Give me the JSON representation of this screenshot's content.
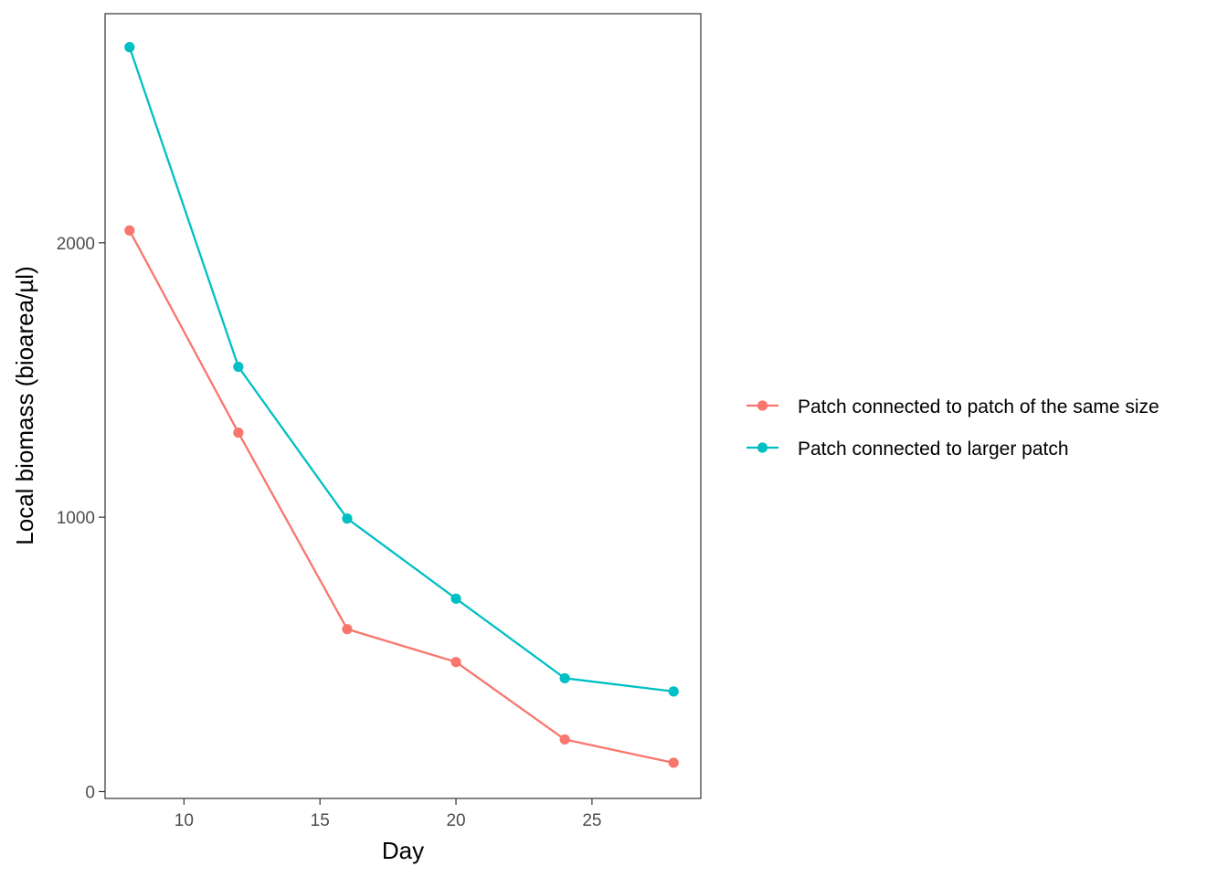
{
  "chart_data": {
    "type": "line",
    "title": "",
    "xlabel": "Day",
    "ylabel": "Local biomass (bioarea/µl)",
    "x": [
      8,
      12,
      16,
      20,
      24,
      28
    ],
    "xlim": [
      7.1,
      29.0
    ],
    "ylim": [
      -25,
      2835
    ],
    "xticks": [
      10,
      15,
      20,
      25
    ],
    "xtick_labels": [
      "10",
      "15",
      "20",
      "25"
    ],
    "yticks": [
      0,
      1000,
      2000
    ],
    "ytick_labels": [
      "0",
      "1000",
      "2000"
    ],
    "grid": false,
    "legend_position": "right",
    "series": [
      {
        "name": "Patch connected to patch of the same size",
        "color": "#F8766D",
        "values": [
          2045,
          1308,
          592,
          472,
          190,
          105
        ]
      },
      {
        "name": "Patch connected to larger patch",
        "color": "#00BFC4",
        "values": [
          2713,
          1548,
          995,
          703,
          413,
          365
        ]
      }
    ]
  }
}
